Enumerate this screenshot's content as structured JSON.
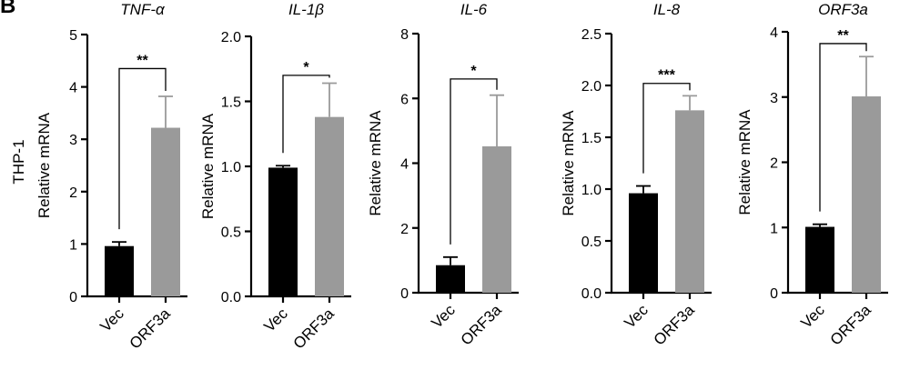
{
  "panel_letter": "B",
  "row_label": "THP-1",
  "colors": {
    "vec": "#000000",
    "orf3a": "#9a9a9a"
  },
  "chart_data": [
    {
      "type": "bar",
      "title": "TNF-α",
      "ylabel": "Relative mRNA",
      "categories": [
        "Vec",
        "ORF3a"
      ],
      "values": [
        0.96,
        3.22
      ],
      "errors": [
        0.08,
        0.6
      ],
      "ylim": [
        0,
        5
      ],
      "yticks": [
        0,
        1,
        2,
        3,
        4,
        5
      ],
      "tick_labels": [
        "0",
        "1",
        "2",
        "3",
        "4",
        "5"
      ],
      "significance": "**",
      "bracket_y": 4.35
    },
    {
      "type": "bar",
      "title": "IL-1β",
      "ylabel": "Relative mRNA",
      "categories": [
        "Vec",
        "ORF3a"
      ],
      "values": [
        0.99,
        1.38
      ],
      "errors": [
        0.015,
        0.26
      ],
      "ylim": [
        0,
        2.0
      ],
      "yticks": [
        0,
        0.5,
        1.0,
        1.5,
        2.0
      ],
      "tick_labels": [
        "0.0",
        "0.5",
        "1.0",
        "1.5",
        "2.0"
      ],
      "significance": "*",
      "bracket_y": 1.7
    },
    {
      "type": "bar",
      "title": "IL-6",
      "ylabel": "Relative mRNA",
      "categories": [
        "Vec",
        "ORF3a"
      ],
      "values": [
        0.85,
        4.52
      ],
      "errors": [
        0.25,
        1.58
      ],
      "ylim": [
        0,
        8
      ],
      "yticks": [
        0,
        2,
        4,
        6,
        8
      ],
      "tick_labels": [
        "0",
        "2",
        "4",
        "6",
        "8"
      ],
      "significance": "*",
      "bracket_y": 6.6
    },
    {
      "type": "bar",
      "title": "IL-8",
      "ylabel": "Relative mRNA",
      "categories": [
        "Vec",
        "ORF3a"
      ],
      "values": [
        0.96,
        1.76
      ],
      "errors": [
        0.07,
        0.14
      ],
      "ylim": [
        0,
        2.5
      ],
      "yticks": [
        0,
        0.5,
        1.0,
        1.5,
        2.0,
        2.5
      ],
      "tick_labels": [
        "0.0",
        "0.5",
        "1.0",
        "1.5",
        "2.0",
        "2.5"
      ],
      "significance": "***",
      "bracket_y": 2.02
    },
    {
      "type": "bar",
      "title": "ORF3a",
      "ylabel": "Relative mRNA",
      "categories": [
        "Vec",
        "ORF3a"
      ],
      "values": [
        1.01,
        3.01
      ],
      "errors": [
        0.04,
        0.61
      ],
      "ylim": [
        0,
        4
      ],
      "yticks": [
        0,
        1,
        2,
        3,
        4
      ],
      "tick_labels": [
        "0",
        "1",
        "2",
        "3",
        "4"
      ],
      "significance": "**",
      "bracket_y": 3.82
    }
  ]
}
